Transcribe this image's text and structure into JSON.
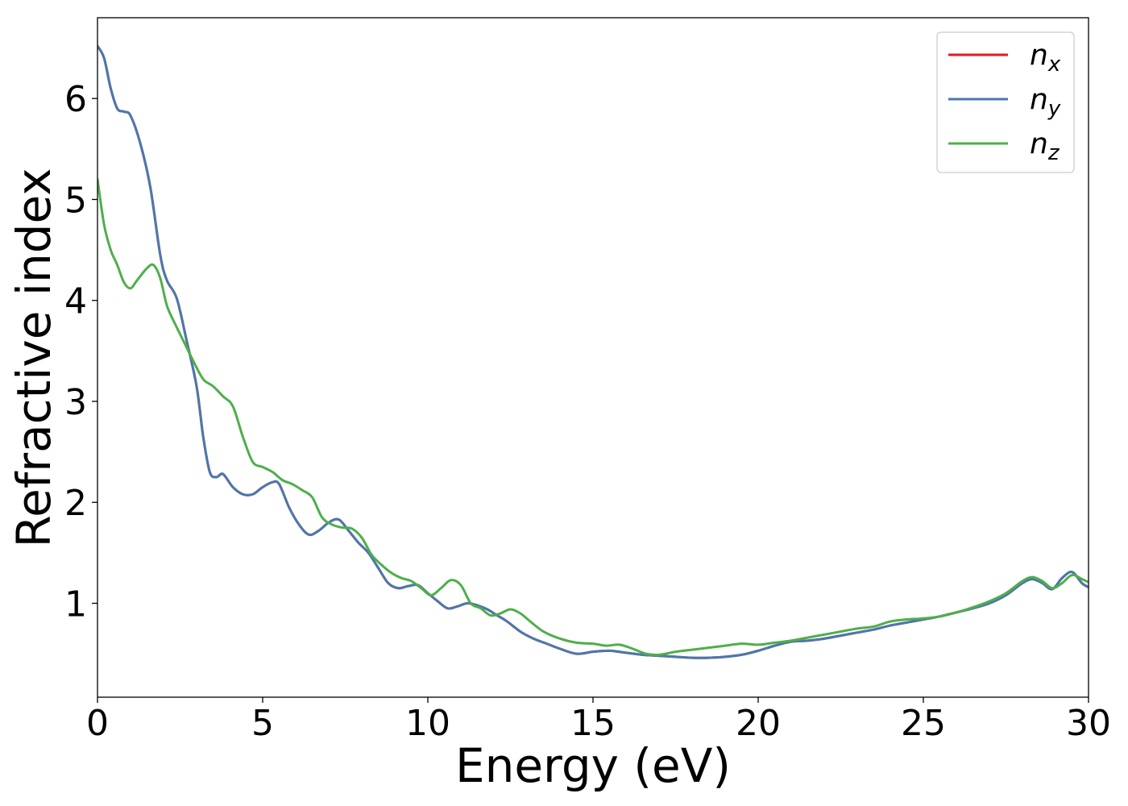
{
  "chart_data": {
    "type": "line",
    "title": "",
    "xlabel": "Energy (eV)",
    "ylabel": "Refractive index",
    "xlim": [
      0,
      30
    ],
    "ylim": [
      0.07,
      6.8
    ],
    "xticks": [
      0,
      5,
      10,
      15,
      20,
      25,
      30
    ],
    "xtick_labels": [
      "0",
      "5",
      "10",
      "15",
      "20",
      "25",
      "30"
    ],
    "yticks": [
      1,
      2,
      3,
      4,
      5,
      6
    ],
    "ytick_labels": [
      "1",
      "2",
      "3",
      "4",
      "5",
      "6"
    ],
    "grid": false,
    "legend_position": "top-right",
    "series": [
      {
        "name": "n",
        "subscript": "x",
        "color": "#e41a1c",
        "x": [
          0,
          0.2,
          0.4,
          0.6,
          0.8,
          1.0,
          1.3,
          1.6,
          1.9,
          2.1,
          2.4,
          2.7,
          3.0,
          3.2,
          3.4,
          3.6,
          3.8,
          4.1,
          4.4,
          4.7,
          5.0,
          5.3,
          5.5,
          5.8,
          6.1,
          6.4,
          6.7,
          7.0,
          7.3,
          7.6,
          7.9,
          8.2,
          8.5,
          8.8,
          9.1,
          9.4,
          9.7,
          10.0,
          10.3,
          10.6,
          10.9,
          11.2,
          11.5,
          11.8,
          12.1,
          12.4,
          12.8,
          13.2,
          13.6,
          14.0,
          14.5,
          15.0,
          15.5,
          16.0,
          16.5,
          17.0,
          17.5,
          18.0,
          18.5,
          19.0,
          19.5,
          20.0,
          20.5,
          21.0,
          21.5,
          22.0,
          22.5,
          23.0,
          23.5,
          24.0,
          24.5,
          25.0,
          25.5,
          26.0,
          26.5,
          27.0,
          27.5,
          28.0,
          28.3,
          28.6,
          28.9,
          29.2,
          29.5,
          29.8,
          30.0
        ],
        "y": [
          6.52,
          6.4,
          6.1,
          5.9,
          5.87,
          5.83,
          5.55,
          5.12,
          4.45,
          4.2,
          4.02,
          3.6,
          3.15,
          2.65,
          2.3,
          2.25,
          2.28,
          2.15,
          2.08,
          2.08,
          2.15,
          2.2,
          2.18,
          1.95,
          1.78,
          1.68,
          1.72,
          1.8,
          1.83,
          1.72,
          1.6,
          1.5,
          1.35,
          1.2,
          1.15,
          1.17,
          1.18,
          1.1,
          1.02,
          0.95,
          0.97,
          1.0,
          0.98,
          0.94,
          0.88,
          0.82,
          0.72,
          0.65,
          0.6,
          0.55,
          0.5,
          0.52,
          0.53,
          0.51,
          0.49,
          0.48,
          0.47,
          0.46,
          0.46,
          0.47,
          0.49,
          0.53,
          0.58,
          0.62,
          0.63,
          0.65,
          0.68,
          0.71,
          0.74,
          0.78,
          0.81,
          0.84,
          0.87,
          0.91,
          0.95,
          1.0,
          1.08,
          1.2,
          1.24,
          1.2,
          1.14,
          1.25,
          1.31,
          1.2,
          1.16
        ]
      },
      {
        "name": "n",
        "subscript": "y",
        "color": "#4a78ad",
        "x": [
          0,
          0.2,
          0.4,
          0.6,
          0.8,
          1.0,
          1.3,
          1.6,
          1.9,
          2.1,
          2.4,
          2.7,
          3.0,
          3.2,
          3.4,
          3.6,
          3.8,
          4.1,
          4.4,
          4.7,
          5.0,
          5.3,
          5.5,
          5.8,
          6.1,
          6.4,
          6.7,
          7.0,
          7.3,
          7.6,
          7.9,
          8.2,
          8.5,
          8.8,
          9.1,
          9.4,
          9.7,
          10.0,
          10.3,
          10.6,
          10.9,
          11.2,
          11.5,
          11.8,
          12.1,
          12.4,
          12.8,
          13.2,
          13.6,
          14.0,
          14.5,
          15.0,
          15.5,
          16.0,
          16.5,
          17.0,
          17.5,
          18.0,
          18.5,
          19.0,
          19.5,
          20.0,
          20.5,
          21.0,
          21.5,
          22.0,
          22.5,
          23.0,
          23.5,
          24.0,
          24.5,
          25.0,
          25.5,
          26.0,
          26.5,
          27.0,
          27.5,
          28.0,
          28.3,
          28.6,
          28.9,
          29.2,
          29.5,
          29.8,
          30.0
        ],
        "y": [
          6.52,
          6.4,
          6.1,
          5.9,
          5.87,
          5.83,
          5.55,
          5.12,
          4.45,
          4.2,
          4.02,
          3.6,
          3.15,
          2.65,
          2.3,
          2.25,
          2.28,
          2.15,
          2.08,
          2.08,
          2.15,
          2.2,
          2.18,
          1.95,
          1.78,
          1.68,
          1.72,
          1.8,
          1.83,
          1.72,
          1.6,
          1.5,
          1.35,
          1.2,
          1.15,
          1.17,
          1.18,
          1.1,
          1.02,
          0.95,
          0.97,
          1.0,
          0.98,
          0.94,
          0.88,
          0.82,
          0.72,
          0.65,
          0.6,
          0.55,
          0.5,
          0.52,
          0.53,
          0.51,
          0.49,
          0.48,
          0.47,
          0.46,
          0.46,
          0.47,
          0.49,
          0.53,
          0.58,
          0.62,
          0.63,
          0.65,
          0.68,
          0.71,
          0.74,
          0.78,
          0.81,
          0.84,
          0.87,
          0.91,
          0.95,
          1.0,
          1.08,
          1.2,
          1.24,
          1.2,
          1.14,
          1.25,
          1.31,
          1.2,
          1.16
        ]
      },
      {
        "name": "n",
        "subscript": "z",
        "color": "#4daf4a",
        "x": [
          0,
          0.2,
          0.4,
          0.6,
          0.8,
          1.0,
          1.2,
          1.5,
          1.7,
          1.9,
          2.1,
          2.3,
          2.6,
          2.9,
          3.2,
          3.5,
          3.8,
          4.1,
          4.4,
          4.7,
          5.0,
          5.3,
          5.6,
          5.9,
          6.2,
          6.5,
          6.8,
          7.1,
          7.4,
          7.7,
          8.0,
          8.3,
          8.6,
          8.9,
          9.2,
          9.5,
          9.8,
          10.1,
          10.4,
          10.7,
          11.0,
          11.3,
          11.6,
          11.9,
          12.2,
          12.5,
          12.8,
          13.1,
          13.5,
          14.0,
          14.5,
          15.0,
          15.4,
          15.8,
          16.2,
          16.6,
          17.0,
          17.5,
          18.0,
          18.5,
          19.0,
          19.5,
          20.0,
          20.5,
          21.0,
          21.5,
          22.0,
          22.5,
          23.0,
          23.5,
          24.0,
          24.5,
          25.0,
          25.5,
          26.0,
          26.5,
          27.0,
          27.5,
          28.0,
          28.3,
          28.6,
          28.9,
          29.2,
          29.5,
          29.8,
          30.0
        ],
        "y": [
          5.2,
          4.75,
          4.5,
          4.35,
          4.18,
          4.12,
          4.2,
          4.32,
          4.35,
          4.22,
          3.95,
          3.8,
          3.6,
          3.4,
          3.22,
          3.15,
          3.05,
          2.95,
          2.65,
          2.4,
          2.35,
          2.3,
          2.22,
          2.18,
          2.12,
          2.05,
          1.85,
          1.78,
          1.75,
          1.74,
          1.65,
          1.48,
          1.38,
          1.3,
          1.25,
          1.22,
          1.15,
          1.08,
          1.15,
          1.23,
          1.18,
          1.0,
          0.95,
          0.88,
          0.9,
          0.94,
          0.9,
          0.82,
          0.72,
          0.65,
          0.61,
          0.6,
          0.58,
          0.59,
          0.55,
          0.5,
          0.49,
          0.52,
          0.54,
          0.56,
          0.58,
          0.6,
          0.59,
          0.61,
          0.63,
          0.66,
          0.69,
          0.72,
          0.75,
          0.77,
          0.82,
          0.84,
          0.85,
          0.87,
          0.91,
          0.96,
          1.02,
          1.1,
          1.22,
          1.26,
          1.22,
          1.15,
          1.2,
          1.28,
          1.24,
          1.21
        ]
      }
    ]
  }
}
